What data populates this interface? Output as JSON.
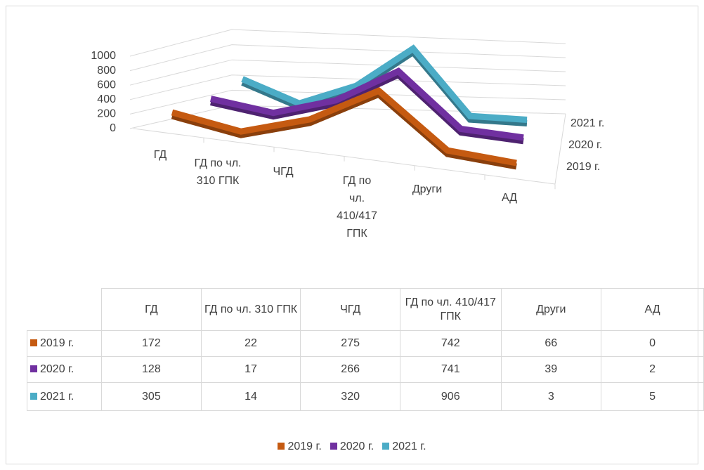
{
  "chart_data": {
    "type": "line3d",
    "categories": [
      "ГД",
      "ГД по чл. 310 ГПК",
      "ЧГД",
      "ГД по чл. 410/417 ГПК",
      "Други",
      "АД"
    ],
    "series": [
      {
        "name": "2019 г.",
        "color": "#c55a11",
        "values": [
          172,
          22,
          275,
          742,
          66,
          0
        ]
      },
      {
        "name": "2020 г.",
        "color": "#7030a0",
        "values": [
          128,
          17,
          266,
          741,
          39,
          2
        ]
      },
      {
        "name": "2021 г.",
        "color": "#4bacc6",
        "values": [
          305,
          14,
          320,
          906,
          3,
          5
        ]
      }
    ],
    "ylim": [
      0,
      1000
    ],
    "yticks": [
      0,
      200,
      400,
      600,
      800,
      1000
    ],
    "grid": true,
    "legend": "bottom"
  }
}
